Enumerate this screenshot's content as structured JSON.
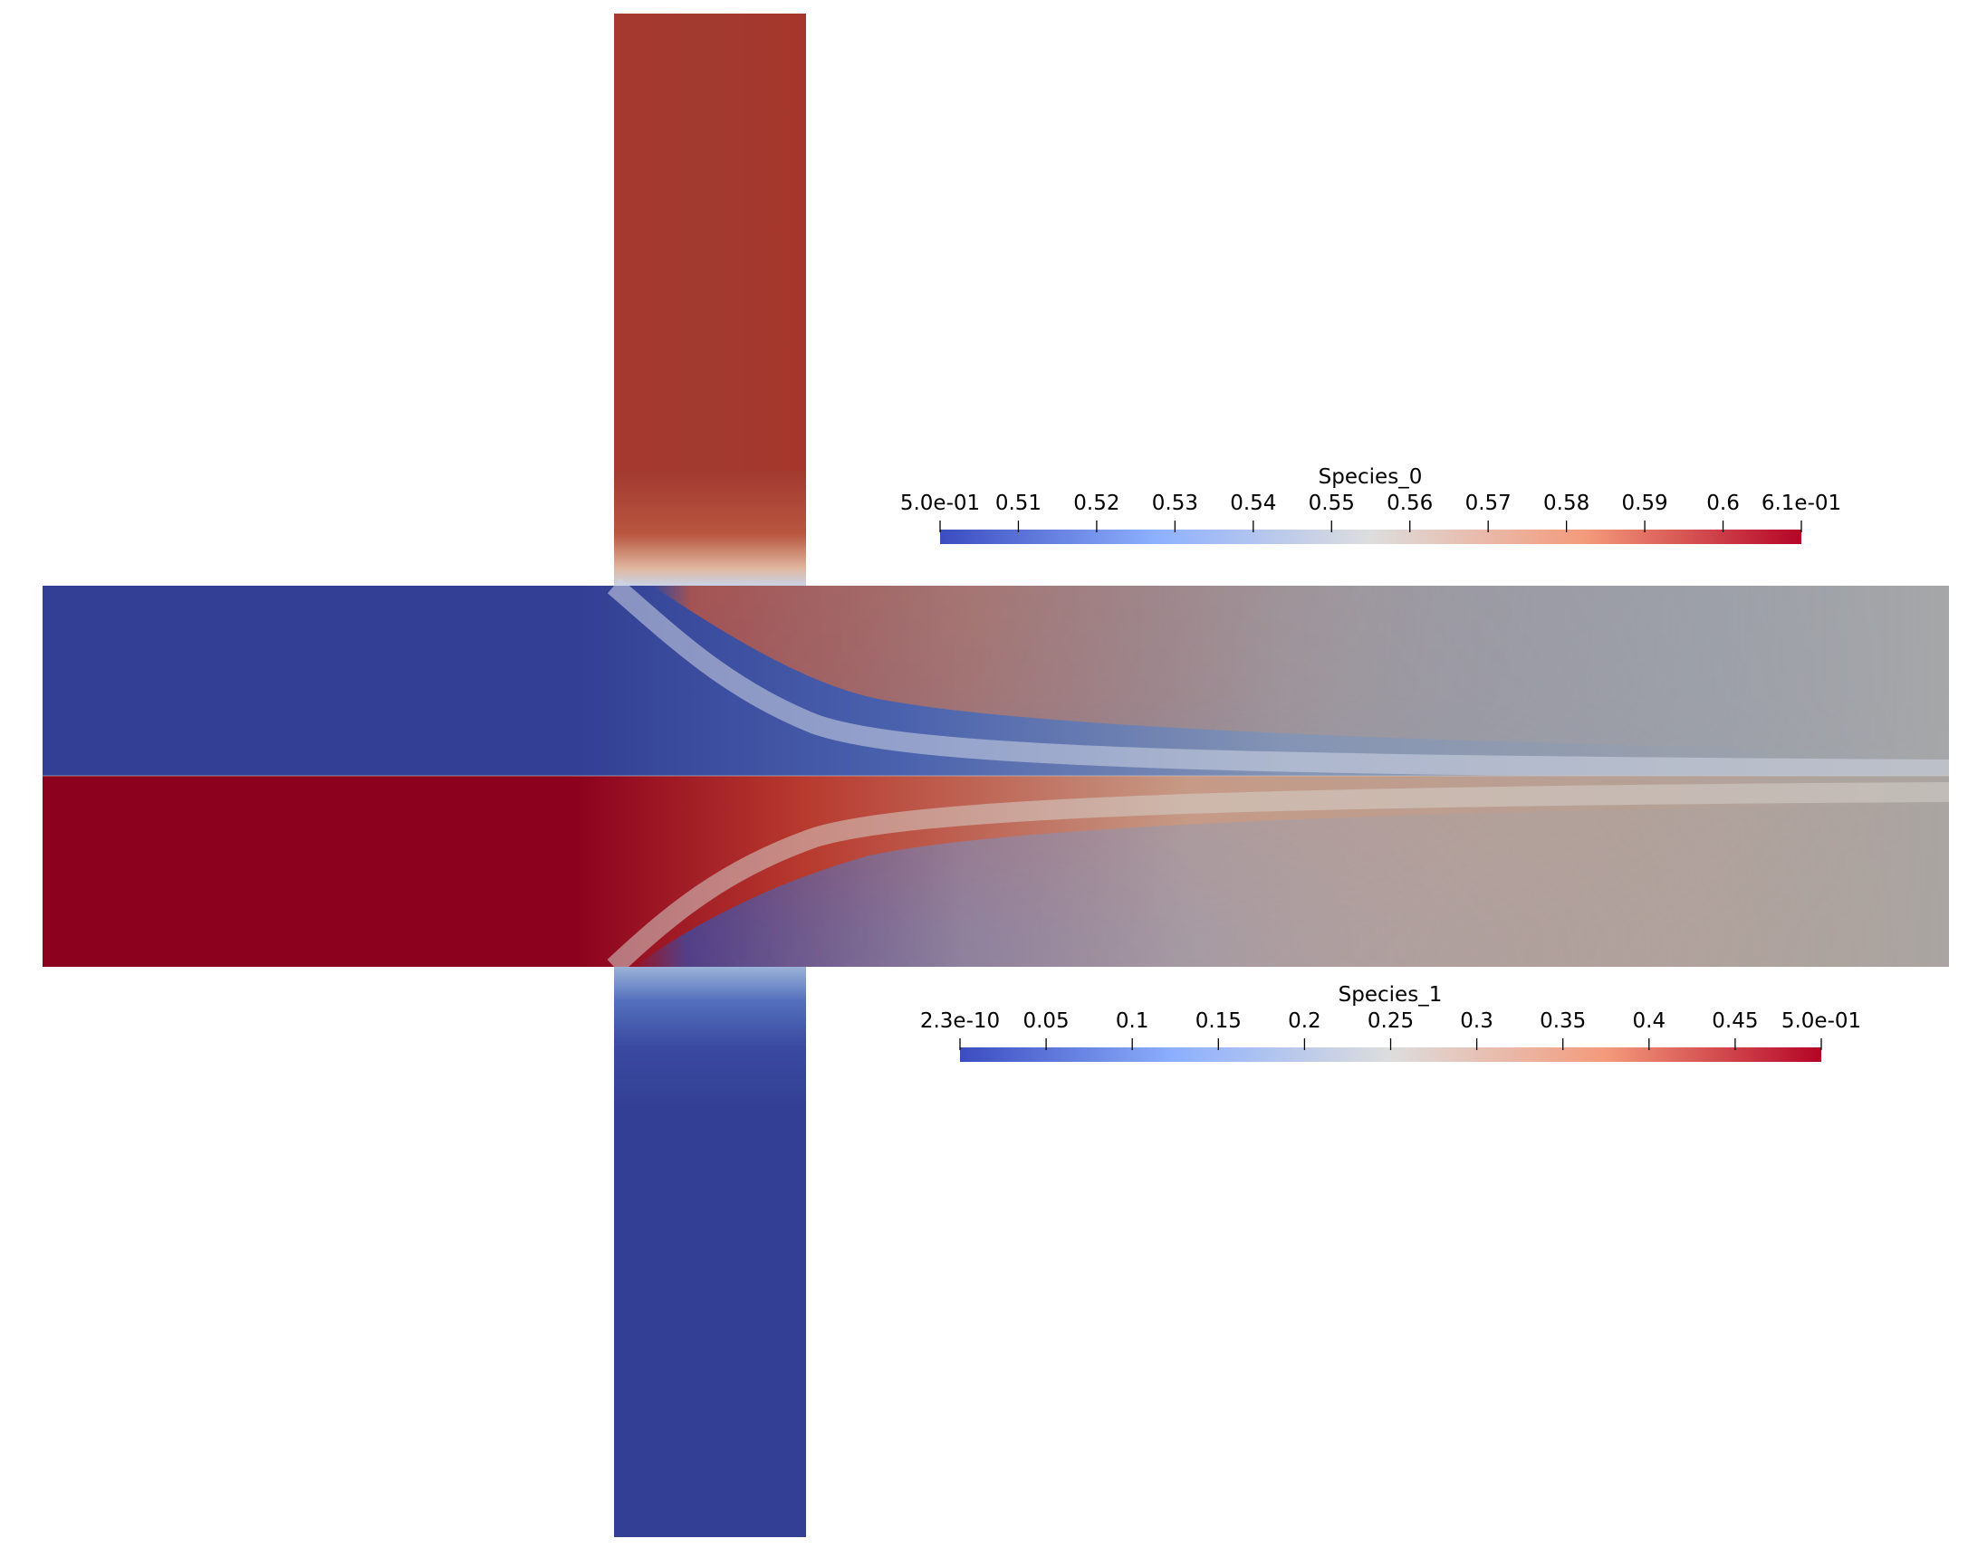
{
  "colors": {
    "background": "#ffffff",
    "low": "#3b4cc0",
    "mid": "#dddddd",
    "high": "#b40426",
    "field_blue": "#323f94",
    "field_red": "#8c021e",
    "field_red_channel": "#a23a30",
    "field_grey": "#a6a6a4",
    "field_tan": "#c79a84"
  },
  "colorbars": [
    {
      "id": "species0",
      "title": "Species_0",
      "colormap": "cool-to-warm",
      "range": [
        0.5,
        0.61
      ],
      "ticks": [
        {
          "label": "5.0e-01",
          "value": 0.5
        },
        {
          "label": "0.51",
          "value": 0.51
        },
        {
          "label": "0.52",
          "value": 0.52
        },
        {
          "label": "0.53",
          "value": 0.53
        },
        {
          "label": "0.54",
          "value": 0.54
        },
        {
          "label": "0.55",
          "value": 0.55
        },
        {
          "label": "0.56",
          "value": 0.56
        },
        {
          "label": "0.57",
          "value": 0.57
        },
        {
          "label": "0.58",
          "value": 0.58
        },
        {
          "label": "0.59",
          "value": 0.59
        },
        {
          "label": "0.6",
          "value": 0.6
        },
        {
          "label": "6.1e-01",
          "value": 0.61
        }
      ]
    },
    {
      "id": "species1",
      "title": "Species_1",
      "colormap": "cool-to-warm",
      "range": [
        0.0,
        0.5
      ],
      "ticks": [
        {
          "label": "2.3e-10",
          "value": 0.0
        },
        {
          "label": "0.05",
          "value": 0.05
        },
        {
          "label": "0.1",
          "value": 0.1
        },
        {
          "label": "0.15",
          "value": 0.15
        },
        {
          "label": "0.2",
          "value": 0.2
        },
        {
          "label": "0.25",
          "value": 0.25
        },
        {
          "label": "0.3",
          "value": 0.3
        },
        {
          "label": "0.35",
          "value": 0.35
        },
        {
          "label": "0.4",
          "value": 0.4
        },
        {
          "label": "0.45",
          "value": 0.45
        },
        {
          "label": "5.0e-01",
          "value": 0.5
        }
      ]
    }
  ]
}
